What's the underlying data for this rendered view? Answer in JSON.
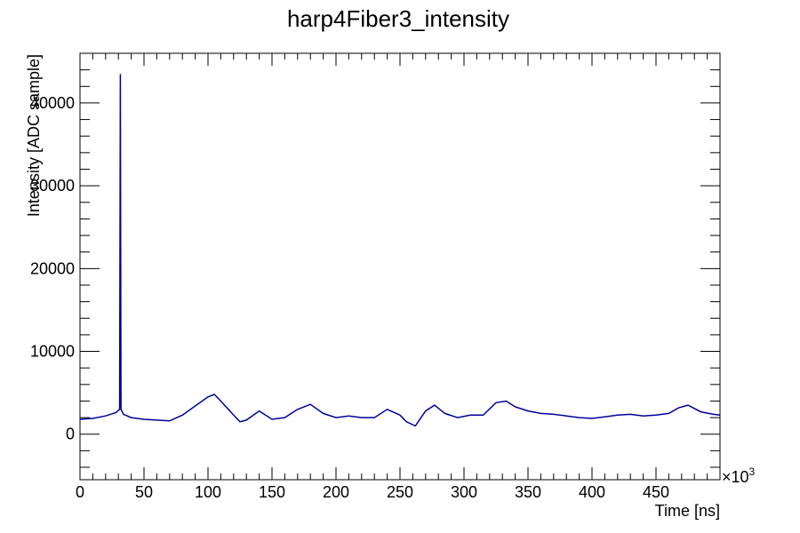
{
  "chart_data": {
    "type": "line",
    "title": "harp4Fiber3_intensity",
    "xlabel": "Time [ns]",
    "ylabel": "Intensity [ADC sample]",
    "xlim": [
      0,
      500000
    ],
    "ylim": [
      -5500,
      46000
    ],
    "x_tick_labels": [
      "0",
      "50",
      "100",
      "150",
      "200",
      "250",
      "300",
      "350",
      "400",
      "450"
    ],
    "x_tick_values": [
      0,
      50000,
      100000,
      150000,
      200000,
      250000,
      300000,
      350000,
      400000,
      450000
    ],
    "y_tick_labels": [
      "0",
      "10000",
      "20000",
      "30000",
      "40000"
    ],
    "y_tick_values": [
      0,
      10000,
      20000,
      30000,
      40000
    ],
    "x_multiplier": {
      "base": "×10",
      "exponent": "3"
    },
    "grid": false,
    "line_color": "#000099",
    "series": [
      {
        "x": [
          0,
          10000,
          20000,
          28000,
          31000,
          31500,
          32000,
          34000,
          40000,
          50000,
          60000,
          70000,
          80000,
          90000,
          100000,
          105000,
          110000,
          120000,
          125000,
          130000,
          140000,
          150000,
          160000,
          170000,
          180000,
          190000,
          200000,
          210000,
          220000,
          230000,
          240000,
          250000,
          255000,
          262000,
          270000,
          277000,
          285000,
          295000,
          305000,
          315000,
          325000,
          333000,
          340000,
          350000,
          360000,
          370000,
          380000,
          390000,
          400000,
          410000,
          420000,
          430000,
          440000,
          450000,
          460000,
          468000,
          475000,
          485000,
          495000,
          500000
        ],
        "y": [
          1800,
          1900,
          2200,
          2600,
          3000,
          43500,
          3000,
          2400,
          2000,
          1800,
          1700,
          1600,
          2300,
          3400,
          4500,
          4800,
          4000,
          2300,
          1500,
          1700,
          2800,
          1800,
          2000,
          3000,
          3600,
          2500,
          2000,
          2200,
          2000,
          2000,
          3000,
          2300,
          1500,
          1000,
          2800,
          3500,
          2500,
          2000,
          2300,
          2300,
          3800,
          4000,
          3300,
          2800,
          2500,
          2400,
          2200,
          2000,
          1900,
          2100,
          2300,
          2400,
          2200,
          2300,
          2500,
          3200,
          3500,
          2700,
          2400,
          2300
        ]
      }
    ]
  }
}
